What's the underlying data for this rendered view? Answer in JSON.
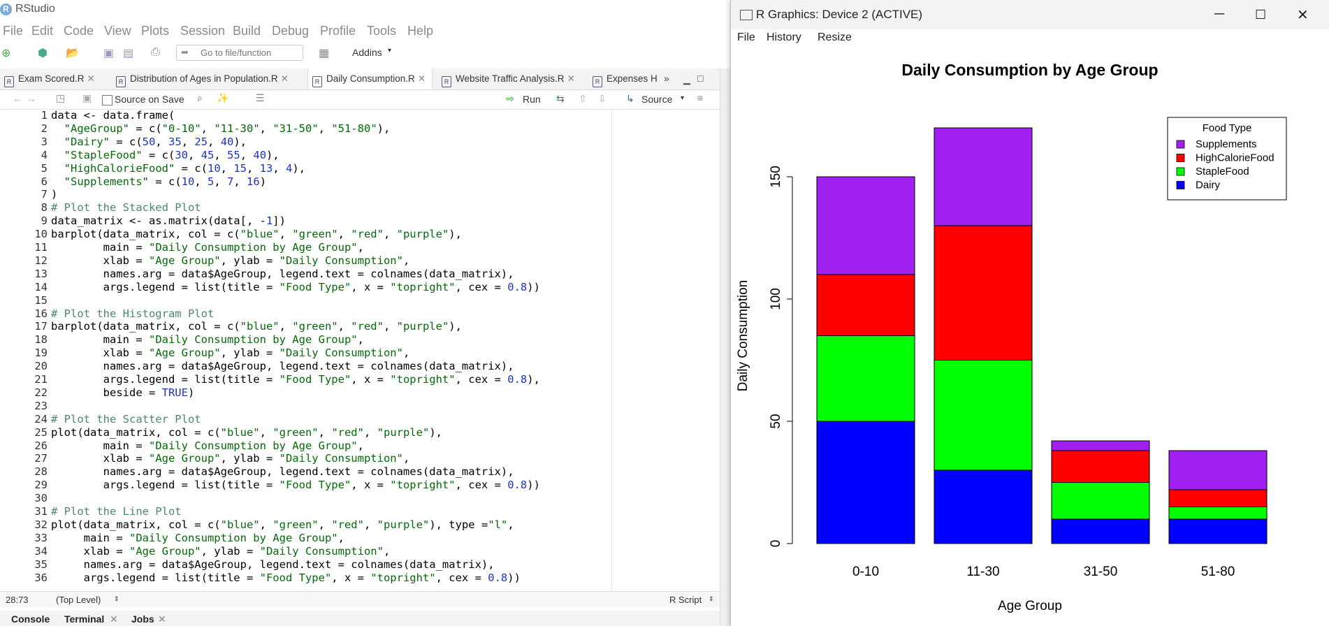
{
  "app": {
    "title": "RStudio",
    "logo": "R"
  },
  "menubar": [
    "File",
    "Edit",
    "Code",
    "View",
    "Plots",
    "Session",
    "Build",
    "Debug",
    "Profile",
    "Tools",
    "Help"
  ],
  "toolbar": {
    "goto_placeholder": "Go to file/function",
    "addins": "Addins"
  },
  "tabs": [
    {
      "label": "Exam Scored.R",
      "active": false
    },
    {
      "label": "Distribution of Ages in Population.R",
      "active": false
    },
    {
      "label": "Daily Consumption.R",
      "active": true
    },
    {
      "label": "Website Traffic Analysis.R",
      "active": false
    },
    {
      "label": "Expenses H",
      "active": false
    }
  ],
  "editor_toolbar": {
    "source_on_save": "Source on Save",
    "run": "Run",
    "source": "Source"
  },
  "line_numbers": [
    "1",
    "2",
    "3",
    "4",
    "5",
    "6",
    "7",
    "8",
    "9",
    "10",
    "11",
    "12",
    "13",
    "14",
    "15",
    "16",
    "17",
    "18",
    "19",
    "20",
    "21",
    "22",
    "23",
    "24",
    "25",
    "26",
    "27",
    "28",
    "29",
    "30",
    "31",
    "32",
    "33",
    "34",
    "35",
    "36"
  ],
  "code_lines": [
    "data <- data.frame(",
    "  \"AgeGroup\" = c(\"0-10\", \"11-30\", \"31-50\", \"51-80\"),",
    "  \"Dairy\" = c(50, 35, 25, 40),",
    "  \"StapleFood\" = c(30, 45, 55, 40),",
    "  \"HighCalorieFood\" = c(10, 15, 13, 4),",
    "  \"Supplements\" = c(10, 5, 7, 16)",
    ")",
    "# Plot the Stacked Plot",
    "data_matrix <- as.matrix(data[, -1])",
    "barplot(data_matrix, col = c(\"blue\", \"green\", \"red\", \"purple\"),",
    "        main = \"Daily Consumption by Age Group\",",
    "        xlab = \"Age Group\", ylab = \"Daily Consumption\",",
    "        names.arg = data$AgeGroup, legend.text = colnames(data_matrix),",
    "        args.legend = list(title = \"Food Type\", x = \"topright\", cex = 0.8))",
    "",
    "# Plot the Histogram Plot",
    "barplot(data_matrix, col = c(\"blue\", \"green\", \"red\", \"purple\"),",
    "        main = \"Daily Consumption by Age Group\",",
    "        xlab = \"Age Group\", ylab = \"Daily Consumption\",",
    "        names.arg = data$AgeGroup, legend.text = colnames(data_matrix),",
    "        args.legend = list(title = \"Food Type\", x = \"topright\", cex = 0.8),",
    "        beside = TRUE)",
    "",
    "# Plot the Scatter Plot",
    "plot(data_matrix, col = c(\"blue\", \"green\", \"red\", \"purple\"),",
    "        main = \"Daily Consumption by Age Group\",",
    "        xlab = \"Age Group\", ylab = \"Daily Consumption\",",
    "        names.arg = data$AgeGroup, legend.text = colnames(data_matrix),",
    "        args.legend = list(title = \"Food Type\", x = \"topright\", cex = 0.8))",
    "",
    "# Plot the Line Plot",
    "plot(data_matrix, col = c(\"blue\", \"green\", \"red\", \"purple\"), type =\"l\",",
    "     main = \"Daily Consumption by Age Group\",",
    "     xlab = \"Age Group\", ylab = \"Daily Consumption\",",
    "     names.arg = data$AgeGroup, legend.text = colnames(data_matrix),",
    "     args.legend = list(title = \"Food Type\", x = \"topright\", cex = 0.8))"
  ],
  "status": {
    "position": "28:73",
    "scope": "(Top Level)",
    "filetype": "R Script"
  },
  "bottom_tabs": [
    "Console",
    "Terminal",
    "Jobs"
  ],
  "graphics_window": {
    "title": "R Graphics: Device 2 (ACTIVE)",
    "menu": [
      "File",
      "History",
      "Resize"
    ]
  },
  "chart_data": {
    "type": "bar",
    "stacked": true,
    "title": "Daily Consumption by Age Group",
    "xlabel": "Age Group",
    "ylabel": "Daily Consumption",
    "categories": [
      "0-10",
      "11-30",
      "31-50",
      "51-80"
    ],
    "ylim": [
      0,
      170
    ],
    "yticks": [
      "0",
      "50",
      "100",
      "150"
    ],
    "series": [
      {
        "name": "Dairy",
        "color": "#0000FF",
        "values": [
          50,
          30,
          10,
          10
        ]
      },
      {
        "name": "StapleFood",
        "color": "#00FF00",
        "values": [
          35,
          45,
          15,
          5
        ]
      },
      {
        "name": "HighCalorieFood",
        "color": "#FF0000",
        "values": [
          25,
          55,
          13,
          7
        ]
      },
      {
        "name": "Supplements",
        "color": "#A020F0",
        "values": [
          40,
          40,
          4,
          16
        ]
      }
    ],
    "legend": {
      "title": "Food Type",
      "placement": "top-right",
      "order": [
        "Supplements",
        "HighCalorieFood",
        "StapleFood",
        "Dairy"
      ]
    },
    "grid": false
  }
}
